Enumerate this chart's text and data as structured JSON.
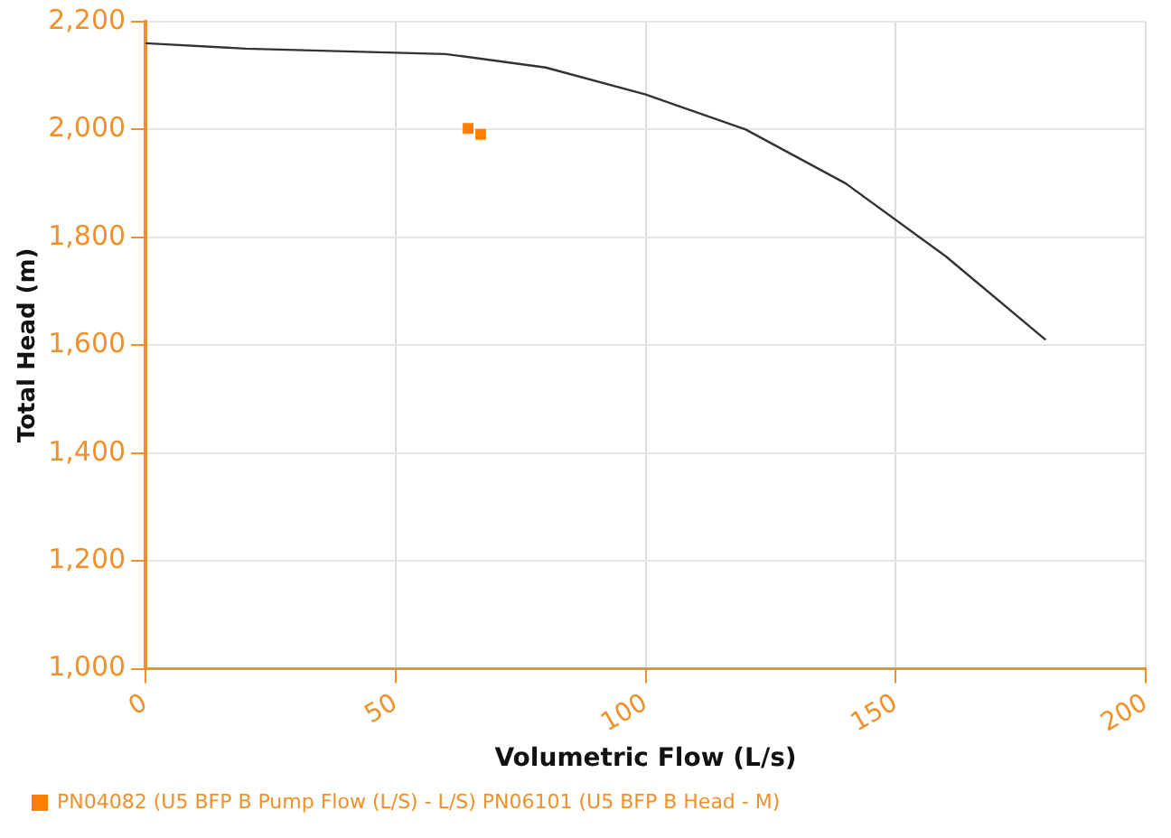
{
  "chart_data": {
    "type": "line",
    "xlabel": "Volumetric Flow (L/s)",
    "ylabel": "Total Head (m)",
    "xlim": [
      0,
      200
    ],
    "xticks": [
      0,
      50,
      100,
      150,
      200
    ],
    "ylim": [
      1000,
      2200
    ],
    "yticks": [
      {
        "value": 1000,
        "label": "1,000"
      },
      {
        "value": 1200,
        "label": "1,200"
      },
      {
        "value": 1400,
        "label": "1,400"
      },
      {
        "value": 1600,
        "label": "1,600"
      },
      {
        "value": 1800,
        "label": "1,800"
      },
      {
        "value": 2000,
        "label": "2,000"
      },
      {
        "value": 2200,
        "label": "2,200"
      }
    ],
    "grid": true,
    "legend": "bottom left",
    "series": [
      {
        "type": "line",
        "color": "#333333",
        "marker": "none",
        "x": [
          0,
          20,
          60,
          80,
          100,
          120,
          140,
          160,
          180
        ],
        "values": [
          2160,
          2150,
          2140,
          2115,
          2065,
          2000,
          1900,
          1765,
          1610
        ]
      },
      {
        "type": "scatter",
        "name": "PN04082 (U5 BFP B Pump Flow (L/S) - L/S) PN06101 (U5 BFP B Head - M)",
        "color": "#ff7f00",
        "marker": "square",
        "x": [
          64.5,
          67
        ],
        "values": [
          2002,
          1991
        ]
      }
    ]
  }
}
